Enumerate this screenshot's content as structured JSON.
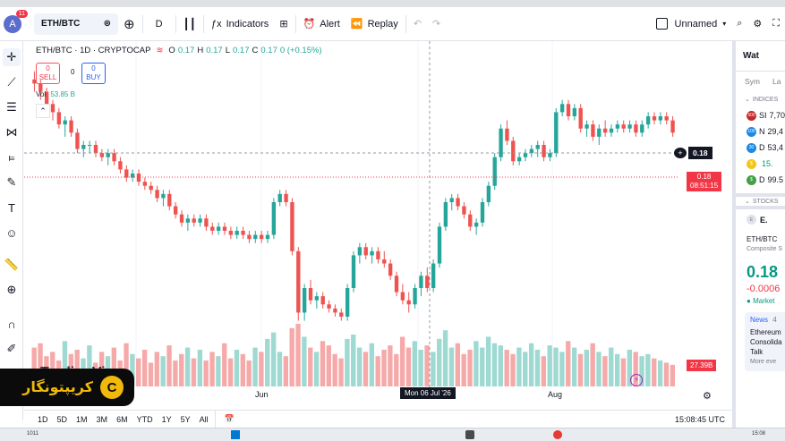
{
  "header": {
    "user_initial": "A",
    "notification_count": "11",
    "symbol": "ETH/BTC",
    "interval": "D",
    "indicators_label": "Indicators",
    "alert_label": "Alert",
    "replay_label": "Replay",
    "layout_name": "Unnamed"
  },
  "legend": {
    "title": "ETH/BTC · 1D · CRYPTOCAP",
    "open_label": "O",
    "open": "0.17",
    "high_label": "H",
    "high": "0.17",
    "low_label": "L",
    "low": "0.17",
    "close_label": "C",
    "close": "0.17",
    "change": "0 (+0.15%)",
    "sell_value": "0",
    "sell_label": "SELL",
    "spread": "0",
    "buy_value": "0",
    "buy_label": "BUY",
    "vol_label": "Vol",
    "vol_value": "53.85 B"
  },
  "price_axis": {
    "crosshair_price": "0.18",
    "last_price": "0.18",
    "countdown": "08:51:15",
    "volume_label": "27.39B"
  },
  "time_axis": {
    "labels": [
      "Jun",
      "Aug"
    ],
    "crosshair_date": "Mon 06 Jul '26"
  },
  "bottom": {
    "timeframes": [
      "1D",
      "5D",
      "1M",
      "3M",
      "6M",
      "YTD",
      "1Y",
      "5Y",
      "All"
    ],
    "clock": "15:08:45 UTC"
  },
  "watermark": "TradingView",
  "logo_text": "کریپتونگار",
  "watchlist": {
    "title": "Wat",
    "col_sym": "Sym",
    "col_last": "La",
    "section_indices": "INDICES",
    "indices": [
      {
        "icon": "500",
        "sym": "SI",
        "last": "7,70",
        "color": "#c62828"
      },
      {
        "icon": "100",
        "sym": "N",
        "last": "29,4",
        "color": "#1e88e5"
      },
      {
        "icon": "30",
        "sym": "D",
        "last": "53,4",
        "color": "#1e88e5"
      },
      {
        "icon": "$",
        "sym": "",
        "last": "15.",
        "color": "#f5c518"
      },
      {
        "icon": "$",
        "sym": "D",
        "last": "99.5",
        "color": "#43a047"
      }
    ],
    "section_stocks": "STOCKS",
    "detail_symbol": "E.",
    "detail_pair": "ETH/BTC",
    "detail_source": "Composite S",
    "detail_price": "0.18",
    "detail_change": "-0.0006",
    "detail_status": "Market",
    "news_label": "News",
    "news_count": "4",
    "news_lines": [
      "Ethereum",
      "Consolida",
      "Talk"
    ],
    "news_more": "More eve"
  },
  "taskbar": {
    "left_text": "1011",
    "clock": "15:08"
  },
  "chart_data": {
    "type": "candlestick",
    "candles": [
      [
        0.195,
        0.197,
        0.192,
        0.194
      ],
      [
        0.194,
        0.195,
        0.19,
        0.192
      ],
      [
        0.192,
        0.193,
        0.188,
        0.189
      ],
      [
        0.189,
        0.19,
        0.185,
        0.187
      ],
      [
        0.187,
        0.188,
        0.183,
        0.184
      ],
      [
        0.184,
        0.186,
        0.181,
        0.185
      ],
      [
        0.185,
        0.186,
        0.181,
        0.182
      ],
      [
        0.182,
        0.183,
        0.177,
        0.178
      ],
      [
        0.178,
        0.18,
        0.176,
        0.179
      ],
      [
        0.179,
        0.18,
        0.177,
        0.179
      ],
      [
        0.179,
        0.18,
        0.176,
        0.177
      ],
      [
        0.177,
        0.178,
        0.175,
        0.176
      ],
      [
        0.176,
        0.178,
        0.174,
        0.177
      ],
      [
        0.177,
        0.178,
        0.174,
        0.175
      ],
      [
        0.175,
        0.176,
        0.172,
        0.173
      ],
      [
        0.173,
        0.174,
        0.17,
        0.171
      ],
      [
        0.171,
        0.173,
        0.17,
        0.172
      ],
      [
        0.172,
        0.173,
        0.169,
        0.17
      ],
      [
        0.17,
        0.171,
        0.168,
        0.169
      ],
      [
        0.169,
        0.17,
        0.167,
        0.168
      ],
      [
        0.168,
        0.169,
        0.165,
        0.166
      ],
      [
        0.166,
        0.168,
        0.164,
        0.167
      ],
      [
        0.167,
        0.168,
        0.163,
        0.164
      ],
      [
        0.164,
        0.165,
        0.161,
        0.162
      ],
      [
        0.162,
        0.163,
        0.159,
        0.16
      ],
      [
        0.16,
        0.162,
        0.158,
        0.161
      ],
      [
        0.161,
        0.162,
        0.159,
        0.16
      ],
      [
        0.16,
        0.162,
        0.159,
        0.161
      ],
      [
        0.161,
        0.162,
        0.158,
        0.159
      ],
      [
        0.159,
        0.16,
        0.157,
        0.158
      ],
      [
        0.158,
        0.16,
        0.157,
        0.159
      ],
      [
        0.159,
        0.16,
        0.157,
        0.158
      ],
      [
        0.158,
        0.159,
        0.156,
        0.157
      ],
      [
        0.157,
        0.159,
        0.156,
        0.158
      ],
      [
        0.158,
        0.159,
        0.156,
        0.157
      ],
      [
        0.157,
        0.158,
        0.155,
        0.156
      ],
      [
        0.156,
        0.158,
        0.155,
        0.157
      ],
      [
        0.157,
        0.158,
        0.155,
        0.156
      ],
      [
        0.156,
        0.158,
        0.155,
        0.157
      ],
      [
        0.157,
        0.166,
        0.156,
        0.165
      ],
      [
        0.165,
        0.168,
        0.164,
        0.167
      ],
      [
        0.167,
        0.168,
        0.164,
        0.165
      ],
      [
        0.165,
        0.166,
        0.152,
        0.153
      ],
      [
        0.153,
        0.154,
        0.136,
        0.138
      ],
      [
        0.138,
        0.145,
        0.136,
        0.144
      ],
      [
        0.144,
        0.146,
        0.14,
        0.141
      ],
      [
        0.141,
        0.143,
        0.139,
        0.142
      ],
      [
        0.142,
        0.143,
        0.139,
        0.14
      ],
      [
        0.14,
        0.141,
        0.138,
        0.139
      ],
      [
        0.139,
        0.14,
        0.137,
        0.138
      ],
      [
        0.138,
        0.139,
        0.136,
        0.137
      ],
      [
        0.137,
        0.145,
        0.136,
        0.144
      ],
      [
        0.144,
        0.153,
        0.143,
        0.152
      ],
      [
        0.152,
        0.155,
        0.15,
        0.154
      ],
      [
        0.154,
        0.155,
        0.151,
        0.152
      ],
      [
        0.152,
        0.154,
        0.15,
        0.153
      ],
      [
        0.153,
        0.154,
        0.15,
        0.151
      ],
      [
        0.151,
        0.153,
        0.149,
        0.15
      ],
      [
        0.15,
        0.151,
        0.146,
        0.147
      ],
      [
        0.147,
        0.148,
        0.142,
        0.143
      ],
      [
        0.143,
        0.145,
        0.14,
        0.141
      ],
      [
        0.141,
        0.143,
        0.138,
        0.14
      ],
      [
        0.14,
        0.145,
        0.139,
        0.144
      ],
      [
        0.144,
        0.148,
        0.142,
        0.147
      ],
      [
        0.147,
        0.149,
        0.143,
        0.144
      ],
      [
        0.144,
        0.151,
        0.143,
        0.15
      ],
      [
        0.15,
        0.16,
        0.149,
        0.159
      ],
      [
        0.159,
        0.166,
        0.158,
        0.165
      ],
      [
        0.165,
        0.167,
        0.163,
        0.166
      ],
      [
        0.166,
        0.167,
        0.163,
        0.164
      ],
      [
        0.164,
        0.165,
        0.161,
        0.162
      ],
      [
        0.162,
        0.163,
        0.158,
        0.159
      ],
      [
        0.159,
        0.161,
        0.157,
        0.16
      ],
      [
        0.16,
        0.166,
        0.159,
        0.165
      ],
      [
        0.165,
        0.17,
        0.164,
        0.169
      ],
      [
        0.169,
        0.177,
        0.168,
        0.176
      ],
      [
        0.176,
        0.184,
        0.175,
        0.183
      ],
      [
        0.183,
        0.185,
        0.179,
        0.18
      ],
      [
        0.18,
        0.181,
        0.174,
        0.175
      ],
      [
        0.175,
        0.177,
        0.174,
        0.176
      ],
      [
        0.176,
        0.178,
        0.175,
        0.177
      ],
      [
        0.177,
        0.179,
        0.176,
        0.178
      ],
      [
        0.178,
        0.18,
        0.176,
        0.179
      ],
      [
        0.179,
        0.18,
        0.175,
        0.176
      ],
      [
        0.176,
        0.178,
        0.175,
        0.177
      ],
      [
        0.177,
        0.188,
        0.176,
        0.187
      ],
      [
        0.187,
        0.19,
        0.186,
        0.189
      ],
      [
        0.189,
        0.19,
        0.185,
        0.186
      ],
      [
        0.186,
        0.189,
        0.185,
        0.188
      ],
      [
        0.188,
        0.189,
        0.182,
        0.183
      ],
      [
        0.183,
        0.185,
        0.181,
        0.184
      ],
      [
        0.184,
        0.185,
        0.18,
        0.181
      ],
      [
        0.181,
        0.184,
        0.179,
        0.183
      ],
      [
        0.183,
        0.185,
        0.181,
        0.182
      ],
      [
        0.182,
        0.184,
        0.181,
        0.183
      ],
      [
        0.183,
        0.185,
        0.182,
        0.184
      ],
      [
        0.184,
        0.185,
        0.182,
        0.183
      ],
      [
        0.183,
        0.185,
        0.182,
        0.184
      ],
      [
        0.184,
        0.185,
        0.181,
        0.182
      ],
      [
        0.182,
        0.185,
        0.181,
        0.184
      ],
      [
        0.184,
        0.187,
        0.183,
        0.186
      ],
      [
        0.186,
        0.187,
        0.184,
        0.185
      ],
      [
        0.185,
        0.187,
        0.184,
        0.186
      ],
      [
        0.186,
        0.187,
        0.184,
        0.185
      ],
      [
        0.185,
        0.186,
        0.181,
        0.182
      ]
    ],
    "volume": [
      18,
      20,
      14,
      16,
      12,
      21,
      15,
      17,
      13,
      19,
      11,
      16,
      14,
      18,
      12,
      20,
      15,
      13,
      17,
      11,
      16,
      14,
      19,
      12,
      15,
      18,
      13,
      17,
      12,
      16,
      14,
      20,
      13,
      17,
      15,
      12,
      18,
      16,
      22,
      25,
      16,
      14,
      27,
      29,
      23,
      18,
      16,
      21,
      19,
      15,
      13,
      22,
      24,
      18,
      16,
      20,
      14,
      17,
      19,
      15,
      23,
      18,
      21,
      17,
      19,
      16,
      22,
      26,
      18,
      20,
      15,
      17,
      21,
      18,
      23,
      20,
      19,
      17,
      15,
      18,
      16,
      20,
      17,
      14,
      19,
      18,
      16,
      21,
      18,
      15,
      17,
      20,
      16,
      14,
      18,
      15,
      13,
      17,
      16,
      14,
      15,
      13,
      12,
      11,
      10
    ],
    "y_range": [
      0.13,
      0.2
    ],
    "x_labels": [
      "Jun",
      "Aug"
    ]
  }
}
